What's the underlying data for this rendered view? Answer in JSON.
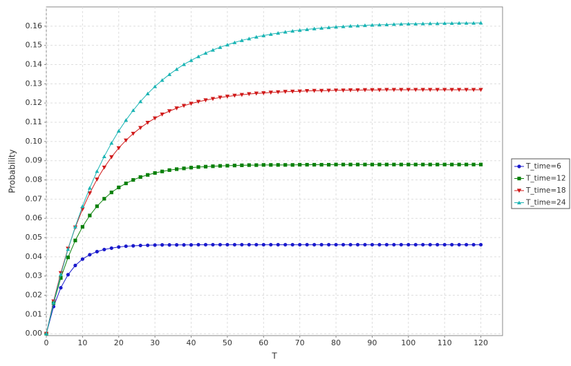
{
  "chart_data": {
    "type": "line",
    "x_label": "T",
    "y_label": "Probability",
    "x": [
      0,
      2,
      4,
      6,
      8,
      10,
      12,
      14,
      16,
      18,
      20,
      22,
      24,
      26,
      28,
      30,
      32,
      34,
      36,
      38,
      40,
      42,
      44,
      46,
      48,
      50,
      52,
      54,
      56,
      58,
      60,
      62,
      64,
      66,
      68,
      70,
      72,
      74,
      76,
      78,
      80,
      82,
      84,
      86,
      88,
      90,
      92,
      94,
      96,
      98,
      100,
      102,
      104,
      106,
      108,
      110,
      112,
      114,
      116,
      118,
      120
    ],
    "series": [
      {
        "name": "T_time=6",
        "color": "#1a1acc",
        "marker": "circle",
        "values": [
          0,
          0.0141,
          0.0239,
          0.0307,
          0.0355,
          0.0388,
          0.0411,
          0.0427,
          0.0438,
          0.0445,
          0.0451,
          0.0455,
          0.0457,
          0.0459,
          0.046,
          0.0461,
          0.0462,
          0.0462,
          0.0462,
          0.0462,
          0.0462,
          0.0463,
          0.0463,
          0.0463,
          0.0463,
          0.0463,
          0.0463,
          0.0463,
          0.0463,
          0.0463,
          0.0463,
          0.0463,
          0.0463,
          0.0463,
          0.0463,
          0.0463,
          0.0463,
          0.0463,
          0.0463,
          0.0463,
          0.0463,
          0.0463,
          0.0463,
          0.0463,
          0.0463,
          0.0463,
          0.0463,
          0.0463,
          0.0463,
          0.0463,
          0.0463,
          0.0463,
          0.0463,
          0.0463,
          0.0463,
          0.0463,
          0.0463,
          0.0463,
          0.0463,
          0.0463,
          0.0463
        ]
      },
      {
        "name": "T_time=12",
        "color": "#0a800a",
        "marker": "square",
        "values": [
          0,
          0.0159,
          0.029,
          0.0397,
          0.0485,
          0.0556,
          0.0615,
          0.0663,
          0.0702,
          0.0735,
          0.0761,
          0.0782,
          0.08,
          0.0815,
          0.0826,
          0.0836,
          0.0844,
          0.0851,
          0.0856,
          0.086,
          0.0864,
          0.0867,
          0.0869,
          0.0871,
          0.0873,
          0.0874,
          0.0875,
          0.0876,
          0.0877,
          0.0877,
          0.0878,
          0.0878,
          0.0878,
          0.0878,
          0.0878,
          0.0879,
          0.0879,
          0.0879,
          0.0879,
          0.0879,
          0.088,
          0.088,
          0.088,
          0.088,
          0.088,
          0.088,
          0.088,
          0.088,
          0.088,
          0.088,
          0.088,
          0.088,
          0.088,
          0.088,
          0.088,
          0.088,
          0.088,
          0.088,
          0.088,
          0.088,
          0.088
        ]
      },
      {
        "name": "T_time=18",
        "color": "#d01a1a",
        "marker": "triangle-down",
        "values": [
          0,
          0.0169,
          0.0316,
          0.0443,
          0.0553,
          0.0648,
          0.0731,
          0.0803,
          0.0865,
          0.0919,
          0.0966,
          0.1006,
          0.1041,
          0.1071,
          0.1098,
          0.1121,
          0.1141,
          0.1158,
          0.1173,
          0.1186,
          0.1197,
          0.1207,
          0.1215,
          0.1222,
          0.1229,
          0.1234,
          0.1239,
          0.1243,
          0.1247,
          0.125,
          0.1252,
          0.1255,
          0.1257,
          0.1259,
          0.126,
          0.1261,
          0.1263,
          0.1264,
          0.1264,
          0.1265,
          0.1266,
          0.1266,
          0.1267,
          0.1267,
          0.1268,
          0.1268,
          0.1268,
          0.1269,
          0.1269,
          0.1269,
          0.1269,
          0.1269,
          0.1269,
          0.1269,
          0.1269,
          0.1269,
          0.1269,
          0.1269,
          0.1269,
          0.1269,
          0.1269
        ]
      },
      {
        "name": "T_time=24",
        "color": "#1ab4b4",
        "marker": "triangle-up",
        "values": [
          0,
          0.0162,
          0.0308,
          0.0439,
          0.0557,
          0.0663,
          0.0758,
          0.0845,
          0.0922,
          0.0992,
          0.1055,
          0.1111,
          0.1162,
          0.1208,
          0.1249,
          0.1286,
          0.1319,
          0.1349,
          0.1376,
          0.1401,
          0.1422,
          0.1442,
          0.146,
          0.1476,
          0.149,
          0.1503,
          0.1515,
          0.1526,
          0.1535,
          0.1544,
          0.1551,
          0.1558,
          0.1564,
          0.157,
          0.1575,
          0.1579,
          0.1583,
          0.1587,
          0.159,
          0.1593,
          0.1596,
          0.1598,
          0.1601,
          0.1602,
          0.1604,
          0.1606,
          0.1607,
          0.1608,
          0.161,
          0.1611,
          0.1612,
          0.1612,
          0.1613,
          0.1614,
          0.1614,
          0.1615,
          0.1615,
          0.1616,
          0.1616,
          0.1616,
          0.1617
        ]
      }
    ],
    "xlim": [
      0,
      126
    ],
    "ylim": [
      -0.001,
      0.17
    ],
    "xticks": [
      0,
      10,
      20,
      30,
      40,
      50,
      60,
      70,
      80,
      90,
      100,
      110,
      120
    ],
    "yticks": [
      {
        "value": 0,
        "label": "0.00"
      },
      {
        "value": 0.01,
        "label": "0.01"
      },
      {
        "value": 0.02,
        "label": "0.02"
      },
      {
        "value": 0.03,
        "label": "0.03"
      },
      {
        "value": 0.04,
        "label": "0.04"
      },
      {
        "value": 0.05,
        "label": "0.05"
      },
      {
        "value": 0.06,
        "label": "0.06"
      },
      {
        "value": 0.07,
        "label": "0.07"
      },
      {
        "value": 0.08,
        "label": "0.08"
      },
      {
        "value": 0.09,
        "label": "0.09"
      },
      {
        "value": 0.1,
        "label": "0.10"
      },
      {
        "value": 0.11,
        "label": "0.11"
      },
      {
        "value": 0.12,
        "label": "0.12"
      },
      {
        "value": 0.13,
        "label": "0.13"
      },
      {
        "value": 0.14,
        "label": "0.14"
      },
      {
        "value": 0.15,
        "label": "0.15"
      },
      {
        "value": 0.16,
        "label": "0.16"
      }
    ],
    "grid": true,
    "legend": "right"
  }
}
